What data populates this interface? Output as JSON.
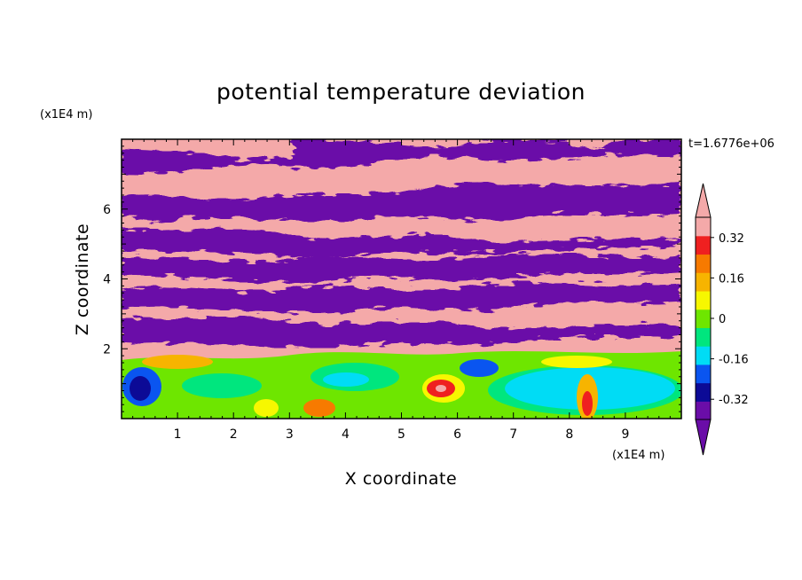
{
  "chart_data": {
    "type": "heatmap",
    "title": "potential temperature deviation",
    "xlabel": "X coordinate",
    "ylabel": "Z coordinate",
    "x_unit": "(x1E4 m)",
    "y_unit": "(x1E4 m)",
    "time_label": "t=1.6776e+06",
    "xlim": [
      0,
      10
    ],
    "ylim": [
      0,
      8
    ],
    "x_ticks": [
      "1",
      "2",
      "3",
      "4",
      "5",
      "6",
      "7",
      "8",
      "9"
    ],
    "y_ticks": [
      "2",
      "4",
      "6"
    ],
    "grid": false,
    "legend": "right",
    "colorbar": {
      "levels": [
        -0.4,
        -0.32,
        -0.24,
        -0.16,
        -0.08,
        0,
        0.08,
        0.16,
        0.24,
        0.32,
        0.4
      ],
      "colors": [
        "#6a0da8",
        "#0c0a96",
        "#0a55f0",
        "#00dcf5",
        "#00e67e",
        "#6ee600",
        "#f7f700",
        "#f7b400",
        "#f77a00",
        "#ef2020",
        "#f4a9a9"
      ],
      "under_color": "#6a0da8",
      "over_color": "#f4a9a9",
      "tick_labels": [
        "0.32",
        "0.16",
        "0",
        "-0.16",
        "-0.32"
      ]
    }
  }
}
